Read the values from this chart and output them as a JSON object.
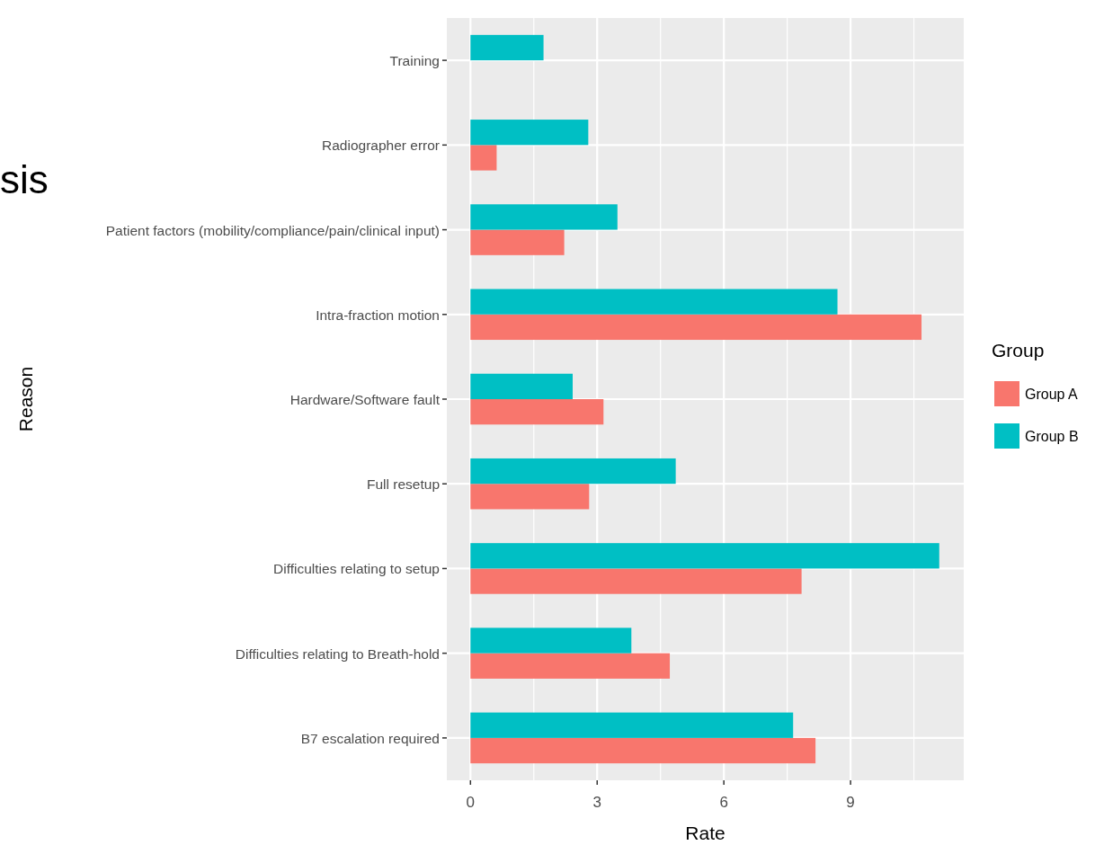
{
  "chart_data": {
    "type": "bar",
    "orientation": "horizontal",
    "xlabel": "Rate",
    "ylabel": "Reason",
    "legend_title": "Group",
    "legend": "right",
    "grid": true,
    "annotations": [
      "sis"
    ],
    "categories": [
      "Training",
      "Radiographer error",
      "Patient factors (mobility/compliance/pain/clinical input)",
      "Intra-fraction motion",
      "Hardware/Software fault",
      "Full resetup",
      "Difficulties relating to setup",
      "Difficulties relating to Breath-hold",
      "B7 escalation required"
    ],
    "xlim": [
      -0.56,
      11.68
    ],
    "xticks": [
      0,
      {
        "value": 1.5,
        "label": null
      },
      3,
      {
        "value": 4.5,
        "label": null
      },
      6,
      {
        "value": 7.5,
        "label": null
      },
      9,
      {
        "value": 10.5,
        "label": null
      }
    ],
    "series": [
      {
        "name": "Group A",
        "color": "#f8766d",
        "values": [
          null,
          0.62,
          2.22,
          10.68,
          3.15,
          2.81,
          7.84,
          4.72,
          8.17
        ]
      },
      {
        "name": "Group B",
        "color": "#00bfc4",
        "values": [
          1.73,
          2.79,
          3.48,
          8.69,
          2.42,
          4.86,
          11.1,
          3.81,
          7.64
        ]
      }
    ]
  }
}
